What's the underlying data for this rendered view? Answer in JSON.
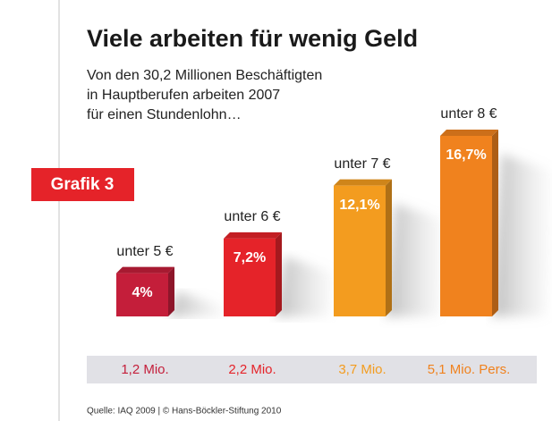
{
  "chart_data": {
    "type": "bar3d",
    "title": "Viele arbeiten für wenig Geld",
    "subtitle": [
      "Von den 30,2 Millionen Beschäftigten",
      "in Hauptberufen arbeiten 2007",
      "für einen Stundenlohn…"
    ],
    "badge": "Grafik 3",
    "categories": [
      "unter 5 €",
      "unter 6 €",
      "unter 7 €",
      "unter 8 €"
    ],
    "values": [
      4,
      7.2,
      12.1,
      16.7
    ],
    "value_labels": [
      "4%",
      "7,2%",
      "12,1%",
      "16,7%"
    ],
    "counts": [
      "1,2 Mio.",
      "2,2 Mio.",
      "3,7 Mio.",
      "5,1 Mio. Pers."
    ],
    "colors": [
      "#c41e3a",
      "#e52329",
      "#f39c1f",
      "#f0821e"
    ],
    "source": "Quelle: IAQ 2009 | © Hans-Böckler-Stiftung 2010"
  }
}
